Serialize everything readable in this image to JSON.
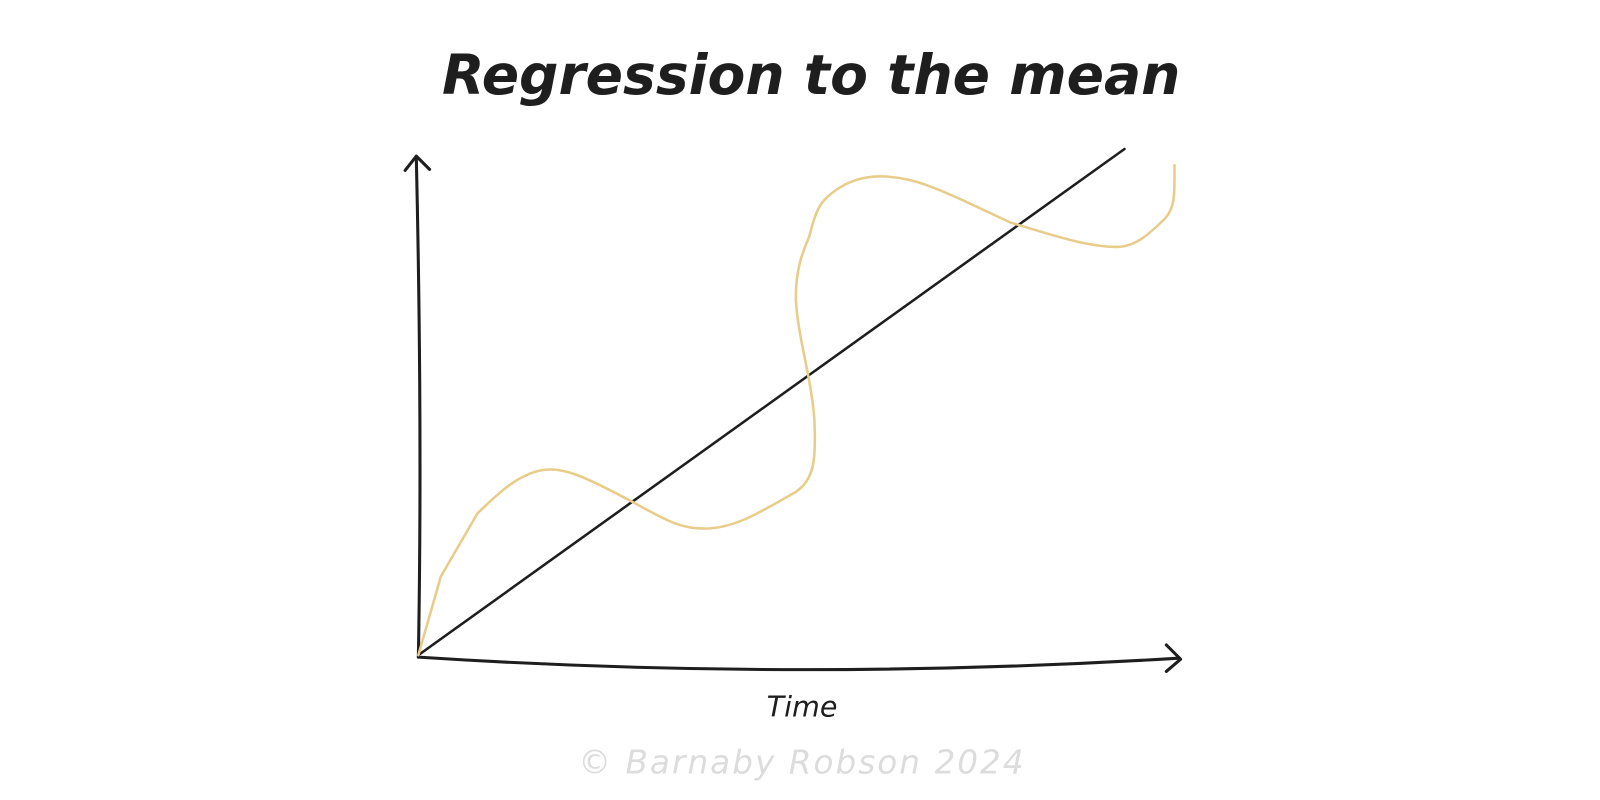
{
  "title": "Regression to the mean",
  "x_axis_label": "Time",
  "credit": "© Barnaby Robson 2024"
}
